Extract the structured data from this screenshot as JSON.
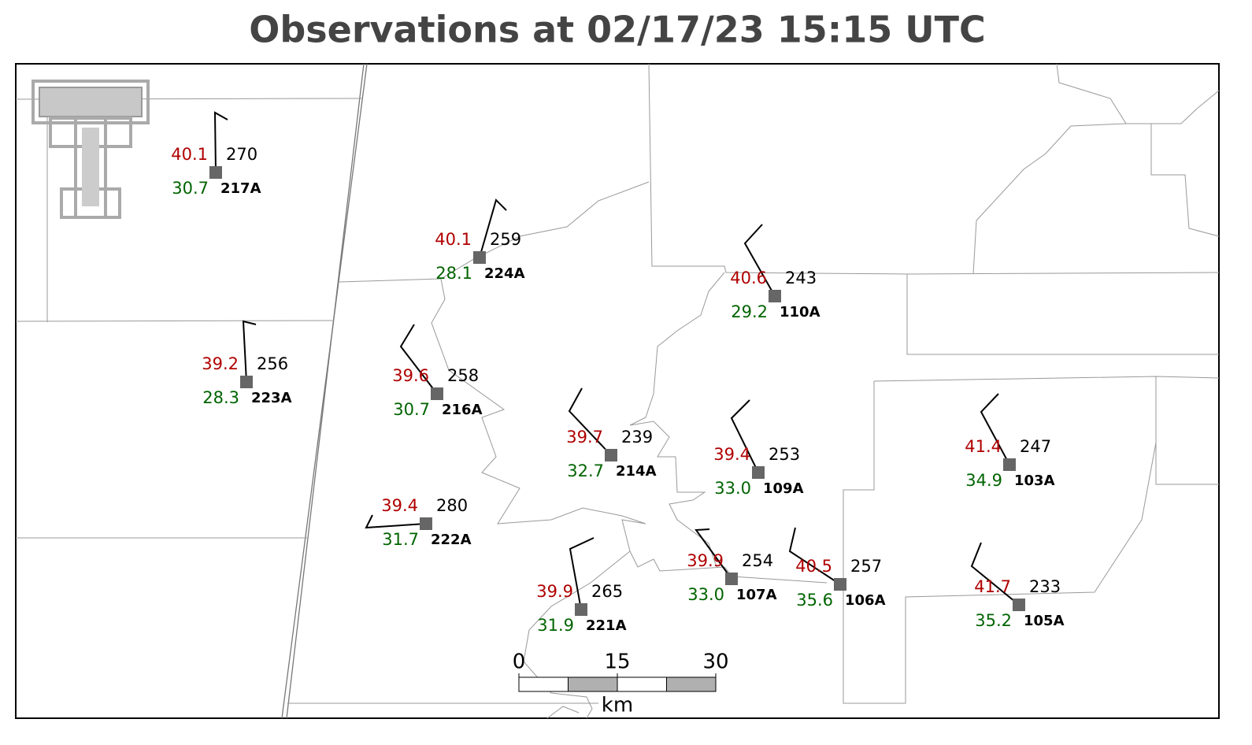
{
  "title": "Observations at 02/17/23 15:15 UTC",
  "stations": [
    {
      "id": "217A",
      "temperature": "40.1",
      "dewpoint": "30.7",
      "pressure": "270"
    },
    {
      "id": "224A",
      "temperature": "40.1",
      "dewpoint": "28.1",
      "pressure": "259"
    },
    {
      "id": "110A",
      "temperature": "40.6",
      "dewpoint": "29.2",
      "pressure": "243"
    },
    {
      "id": "223A",
      "temperature": "39.2",
      "dewpoint": "28.3",
      "pressure": "256"
    },
    {
      "id": "216A",
      "temperature": "39.6",
      "dewpoint": "30.7",
      "pressure": "258"
    },
    {
      "id": "214A",
      "temperature": "39.7",
      "dewpoint": "32.7",
      "pressure": "239"
    },
    {
      "id": "109A",
      "temperature": "39.4",
      "dewpoint": "33.0",
      "pressure": "253"
    },
    {
      "id": "103A",
      "temperature": "41.4",
      "dewpoint": "34.9",
      "pressure": "247"
    },
    {
      "id": "222A",
      "temperature": "39.4",
      "dewpoint": "31.7",
      "pressure": "280"
    },
    {
      "id": "221A",
      "temperature": "39.9",
      "dewpoint": "31.9",
      "pressure": "265"
    },
    {
      "id": "107A",
      "temperature": "39.9",
      "dewpoint": "33.0",
      "pressure": "254"
    },
    {
      "id": "106A",
      "temperature": "40.5",
      "dewpoint": "35.6",
      "pressure": "257"
    },
    {
      "id": "105A",
      "temperature": "41.7",
      "dewpoint": "35.2",
      "pressure": "233"
    }
  ],
  "scale_bar": {
    "ticks": [
      0,
      15,
      30
    ],
    "unit": "km"
  }
}
